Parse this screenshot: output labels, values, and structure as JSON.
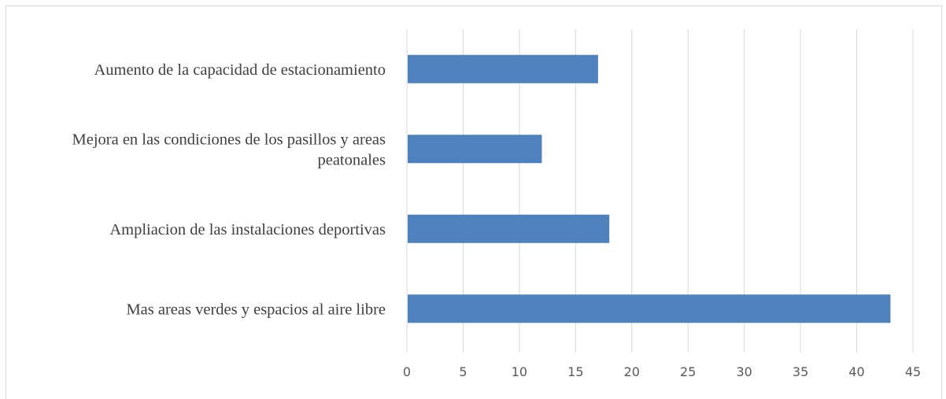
{
  "chart_data": {
    "type": "bar",
    "orientation": "horizontal",
    "title": "",
    "xlabel": "",
    "ylabel": "",
    "categories": [
      [
        "Aumento de la capacidad de estacionamiento"
      ],
      [
        "Mejora en las condiciones de los pasillos y areas",
        "peatonales"
      ],
      [
        "Ampliacion de las instalaciones deportivas"
      ],
      [
        "Mas areas verdes y espacios al aire libre"
      ]
    ],
    "values": [
      17,
      12,
      18,
      43
    ],
    "xlim": [
      0,
      45
    ],
    "xticks": [
      "0",
      "5",
      "10",
      "15",
      "20",
      "25",
      "30",
      "35",
      "40",
      "45"
    ],
    "grid": "vertical",
    "legend": "none",
    "bar_color": "#4f81bd",
    "grid_color": "#d9d9d9"
  }
}
